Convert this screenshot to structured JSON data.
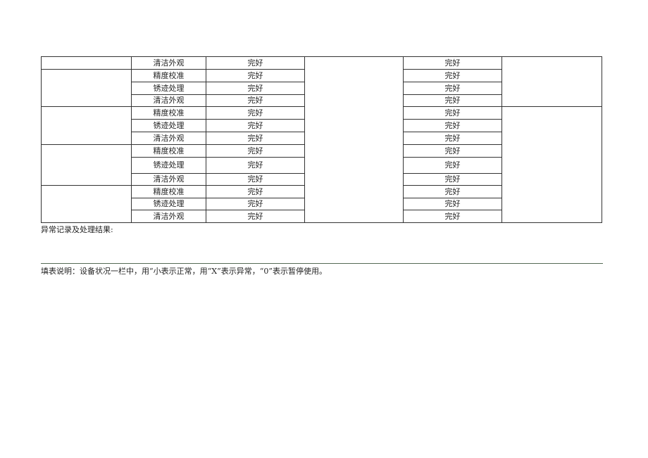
{
  "rows": [
    {
      "item": "清洁外观",
      "status1": "完好",
      "status2": "完好"
    },
    {
      "item": "精度校准",
      "status1": "完好",
      "status2": "完好"
    },
    {
      "item": "锈迹处理",
      "status1": "完好",
      "status2": "完好"
    },
    {
      "item": "清洁外观",
      "status1": "完好",
      "status2": "完好"
    },
    {
      "item": "精度校准",
      "status1": "完好",
      "status2": "完好"
    },
    {
      "item": "锈迹处理",
      "status1": "完好",
      "status2": "完好"
    },
    {
      "item": "清洁外观",
      "status1": "完好",
      "status2": "完好"
    },
    {
      "item": "精度校准",
      "status1": "完好",
      "status2": "完好"
    },
    {
      "item": "锈迹处理",
      "status1": "完好",
      "status2": "完好"
    },
    {
      "item": "清洁外观",
      "status1": "完好",
      "status2": "完好"
    },
    {
      "item": "精度校准",
      "status1": "完好",
      "status2": "完好"
    },
    {
      "item": "锈迹处理",
      "status1": "完好",
      "status2": "完好"
    },
    {
      "item": "清洁外观",
      "status1": "完好",
      "status2": "完好"
    }
  ],
  "abnormal_label": "异常记录及处理结果:",
  "fill_note": "填表说明：设备状况一栏中，用“小表示正常，用“X”表示异常，“0”表示暂停使用。"
}
